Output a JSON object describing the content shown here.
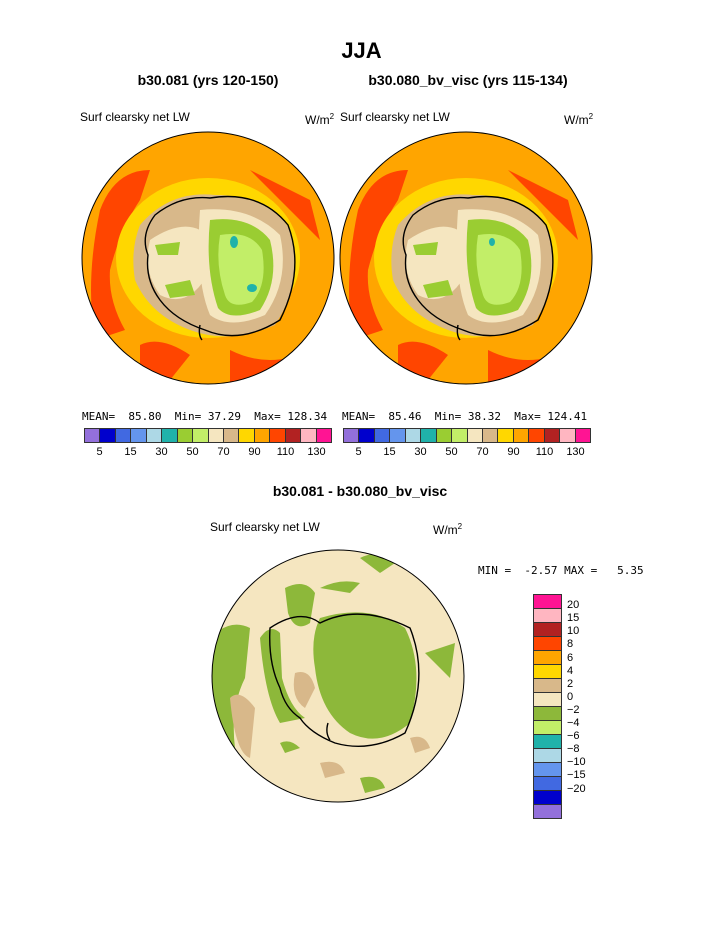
{
  "page": {
    "title": "JJA"
  },
  "left_panel": {
    "case_title": "b30.081 (yrs 120-150)",
    "variable": "Surf clearsky net LW",
    "units_base": "W/m",
    "units_exp": "2",
    "stats": {
      "mean_label": "MEAN=",
      "mean": "85.80",
      "min_label": "Min=",
      "min": "37.29",
      "max_label": "Max=",
      "max": "128.34"
    }
  },
  "right_panel": {
    "case_title": "b30.080_bv_visc (yrs 115-134)",
    "variable": "Surf clearsky net LW",
    "units_base": "W/m",
    "units_exp": "2",
    "stats": {
      "mean_label": "MEAN=",
      "mean": "85.46",
      "min_label": "Min=",
      "min": "38.32",
      "max_label": "Max=",
      "max": "124.41"
    }
  },
  "abs_colorbar": {
    "colors": [
      "#9370DB",
      "#0000CD",
      "#4169E1",
      "#6495ED",
      "#ADD8E6",
      "#20B2AA",
      "#9ACD32",
      "#C2EE68",
      "#F5E6C0",
      "#D8B88A",
      "#FFD700",
      "#FFA500",
      "#FF4500",
      "#B22222",
      "#FFB6C1",
      "#FF1493"
    ],
    "labels": [
      "5",
      "15",
      "30",
      "50",
      "70",
      "90",
      "110",
      "130"
    ]
  },
  "diff_panel": {
    "title": "b30.081 - b30.080_bv_visc",
    "variable": "Surf clearsky net LW",
    "units_base": "W/m",
    "units_exp": "2",
    "stats": {
      "min_label": "MIN =",
      "min": "-2.57",
      "max_label": "MAX =",
      "max": "5.35"
    }
  },
  "diff_colorbar": {
    "colors": [
      "#FF1493",
      "#FFB6C1",
      "#B22222",
      "#FF4500",
      "#FFA500",
      "#FFD700",
      "#D8B88A",
      "#F5E6C0",
      "#8DB83A",
      "#C2EE68",
      "#20B2AA",
      "#ADD8E6",
      "#6495ED",
      "#4169E1",
      "#0000CD",
      "#9370DB"
    ],
    "labels": [
      "20",
      "15",
      "10",
      "8",
      "6",
      "4",
      "2",
      "0",
      "−2",
      "−4",
      "−6",
      "−8",
      "−10",
      "−15",
      "−20"
    ]
  }
}
